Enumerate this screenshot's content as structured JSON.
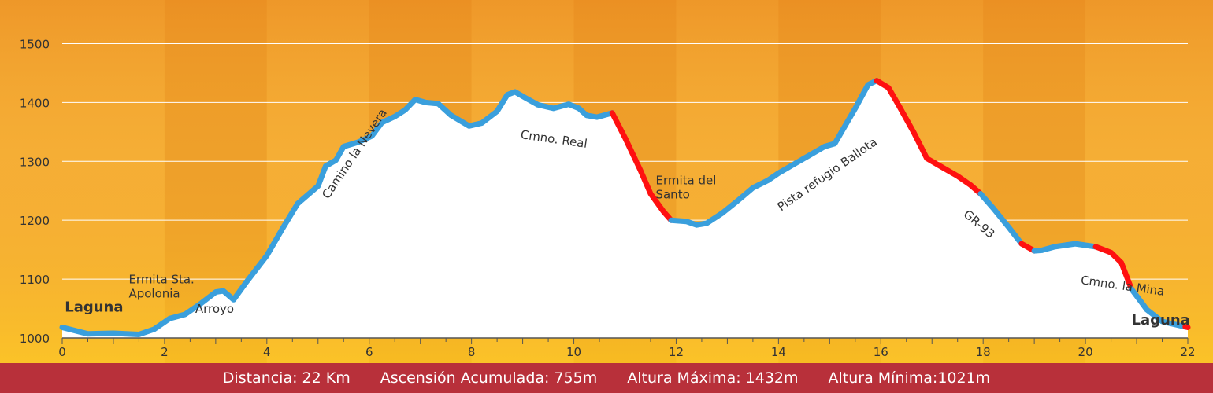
{
  "chart_data": {
    "type": "area",
    "xlim": [
      0,
      22
    ],
    "ylim": [
      1000,
      1550
    ],
    "x_ticks": [
      0,
      2,
      4,
      6,
      8,
      10,
      12,
      14,
      16,
      18,
      20,
      22
    ],
    "y_ticks": [
      1000,
      1100,
      1200,
      1300,
      1400,
      1500
    ],
    "grid": true,
    "profile": [
      {
        "x": 0.0,
        "y": 1018
      },
      {
        "x": 0.5,
        "y": 1007
      },
      {
        "x": 1.0,
        "y": 1008
      },
      {
        "x": 1.5,
        "y": 1006
      },
      {
        "x": 1.8,
        "y": 1015
      },
      {
        "x": 2.1,
        "y": 1033
      },
      {
        "x": 2.4,
        "y": 1040
      },
      {
        "x": 2.7,
        "y": 1058
      },
      {
        "x": 3.0,
        "y": 1078
      },
      {
        "x": 3.15,
        "y": 1080
      },
      {
        "x": 3.35,
        "y": 1065
      },
      {
        "x": 3.6,
        "y": 1095
      },
      {
        "x": 4.0,
        "y": 1140
      },
      {
        "x": 4.3,
        "y": 1185
      },
      {
        "x": 4.6,
        "y": 1228
      },
      {
        "x": 5.0,
        "y": 1258
      },
      {
        "x": 5.15,
        "y": 1292
      },
      {
        "x": 5.35,
        "y": 1302
      },
      {
        "x": 5.5,
        "y": 1325
      },
      {
        "x": 5.8,
        "y": 1333
      },
      {
        "x": 6.05,
        "y": 1343
      },
      {
        "x": 6.25,
        "y": 1366
      },
      {
        "x": 6.5,
        "y": 1376
      },
      {
        "x": 6.7,
        "y": 1387
      },
      {
        "x": 6.9,
        "y": 1405
      },
      {
        "x": 7.1,
        "y": 1400
      },
      {
        "x": 7.35,
        "y": 1398
      },
      {
        "x": 7.6,
        "y": 1378
      },
      {
        "x": 7.95,
        "y": 1360
      },
      {
        "x": 8.2,
        "y": 1365
      },
      {
        "x": 8.5,
        "y": 1385
      },
      {
        "x": 8.7,
        "y": 1413
      },
      {
        "x": 8.85,
        "y": 1418
      },
      {
        "x": 9.05,
        "y": 1408
      },
      {
        "x": 9.3,
        "y": 1396
      },
      {
        "x": 9.6,
        "y": 1390
      },
      {
        "x": 9.9,
        "y": 1397
      },
      {
        "x": 10.1,
        "y": 1390
      },
      {
        "x": 10.25,
        "y": 1378
      },
      {
        "x": 10.45,
        "y": 1375
      },
      {
        "x": 10.75,
        "y": 1382
      },
      {
        "x": 11.0,
        "y": 1340
      },
      {
        "x": 11.3,
        "y": 1285
      },
      {
        "x": 11.5,
        "y": 1245
      },
      {
        "x": 11.75,
        "y": 1215
      },
      {
        "x": 11.9,
        "y": 1200
      },
      {
        "x": 12.2,
        "y": 1198
      },
      {
        "x": 12.4,
        "y": 1192
      },
      {
        "x": 12.6,
        "y": 1195
      },
      {
        "x": 12.9,
        "y": 1212
      },
      {
        "x": 13.2,
        "y": 1233
      },
      {
        "x": 13.5,
        "y": 1255
      },
      {
        "x": 13.8,
        "y": 1268
      },
      {
        "x": 14.0,
        "y": 1280
      },
      {
        "x": 14.3,
        "y": 1295
      },
      {
        "x": 14.6,
        "y": 1310
      },
      {
        "x": 14.9,
        "y": 1325
      },
      {
        "x": 15.1,
        "y": 1330
      },
      {
        "x": 15.3,
        "y": 1360
      },
      {
        "x": 15.5,
        "y": 1390
      },
      {
        "x": 15.75,
        "y": 1430
      },
      {
        "x": 15.92,
        "y": 1437
      },
      {
        "x": 16.15,
        "y": 1425
      },
      {
        "x": 16.35,
        "y": 1395
      },
      {
        "x": 16.65,
        "y": 1348
      },
      {
        "x": 16.9,
        "y": 1305
      },
      {
        "x": 17.2,
        "y": 1290
      },
      {
        "x": 17.5,
        "y": 1275
      },
      {
        "x": 17.75,
        "y": 1260
      },
      {
        "x": 17.95,
        "y": 1245
      },
      {
        "x": 18.2,
        "y": 1220
      },
      {
        "x": 18.5,
        "y": 1188
      },
      {
        "x": 18.75,
        "y": 1160
      },
      {
        "x": 19.0,
        "y": 1148
      },
      {
        "x": 19.15,
        "y": 1149
      },
      {
        "x": 19.4,
        "y": 1155
      },
      {
        "x": 19.8,
        "y": 1160
      },
      {
        "x": 20.2,
        "y": 1155
      },
      {
        "x": 20.5,
        "y": 1145
      },
      {
        "x": 20.7,
        "y": 1128
      },
      {
        "x": 20.9,
        "y": 1083
      },
      {
        "x": 21.1,
        "y": 1060
      },
      {
        "x": 21.2,
        "y": 1048
      },
      {
        "x": 21.5,
        "y": 1028
      },
      {
        "x": 22.0,
        "y": 1018
      }
    ],
    "segments": [
      {
        "from": 0.0,
        "to": 10.75,
        "color": "#3a9fdc"
      },
      {
        "from": 10.75,
        "to": 11.9,
        "color": "#ff1010"
      },
      {
        "from": 11.9,
        "to": 15.92,
        "color": "#3a9fdc"
      },
      {
        "from": 15.92,
        "to": 17.95,
        "color": "#ff1010"
      },
      {
        "from": 17.95,
        "to": 18.75,
        "color": "#3a9fdc"
      },
      {
        "from": 18.75,
        "to": 19.0,
        "color": "#ff1010"
      },
      {
        "from": 19.0,
        "to": 20.2,
        "color": "#3a9fdc"
      },
      {
        "from": 20.2,
        "to": 20.9,
        "color": "#ff1010"
      },
      {
        "from": 20.9,
        "to": 21.95,
        "color": "#3a9fdc"
      },
      {
        "from": 21.95,
        "to": 22.0,
        "color": "#ff1010"
      }
    ],
    "annotations": [
      {
        "text": "Laguna",
        "x": 0.05,
        "y": 1045,
        "rotate": 0,
        "bold": true
      },
      {
        "text": "Ermita Sta.",
        "x": 1.3,
        "y": 1093,
        "rotate": 0,
        "bold": false
      },
      {
        "text": "Apolonia",
        "x": 1.3,
        "y": 1069,
        "rotate": 0,
        "bold": false
      },
      {
        "text": "Arroyo",
        "x": 2.6,
        "y": 1043,
        "rotate": 0,
        "bold": false
      },
      {
        "text": "Camino la Nevera",
        "x": 5.2,
        "y": 1235,
        "rotate": -56,
        "bold": false
      },
      {
        "text": "Cmno. Real",
        "x": 8.95,
        "y": 1339,
        "rotate": 8,
        "bold": false
      },
      {
        "text": "Ermita del",
        "x": 11.6,
        "y": 1261,
        "rotate": 0,
        "bold": false
      },
      {
        "text": "Santo",
        "x": 11.6,
        "y": 1237,
        "rotate": 0,
        "bold": false
      },
      {
        "text": "Pista refugio Ballota",
        "x": 14.05,
        "y": 1215,
        "rotate": -35,
        "bold": false
      },
      {
        "text": "GR-93",
        "x": 17.6,
        "y": 1208,
        "rotate": 40,
        "bold": false
      },
      {
        "text": "Cmno. la Mina",
        "x": 19.9,
        "y": 1092,
        "rotate": 8,
        "bold": false
      },
      {
        "text": "Laguna",
        "x": 20.9,
        "y": 1023,
        "rotate": 0,
        "bold": true
      }
    ],
    "colors": {
      "band_a": "#f6b036",
      "band_b": "#eea029",
      "grid": "#ffffff",
      "fill": "#ffffff",
      "axis": "#555555",
      "text": "#333333"
    }
  },
  "footer": {
    "distance": "Distancia: 22 Km",
    "ascent": "Ascensión Acumulada: 755m",
    "max": "Altura Máxima: 1432m",
    "min": "Altura Mínima:1021m"
  }
}
